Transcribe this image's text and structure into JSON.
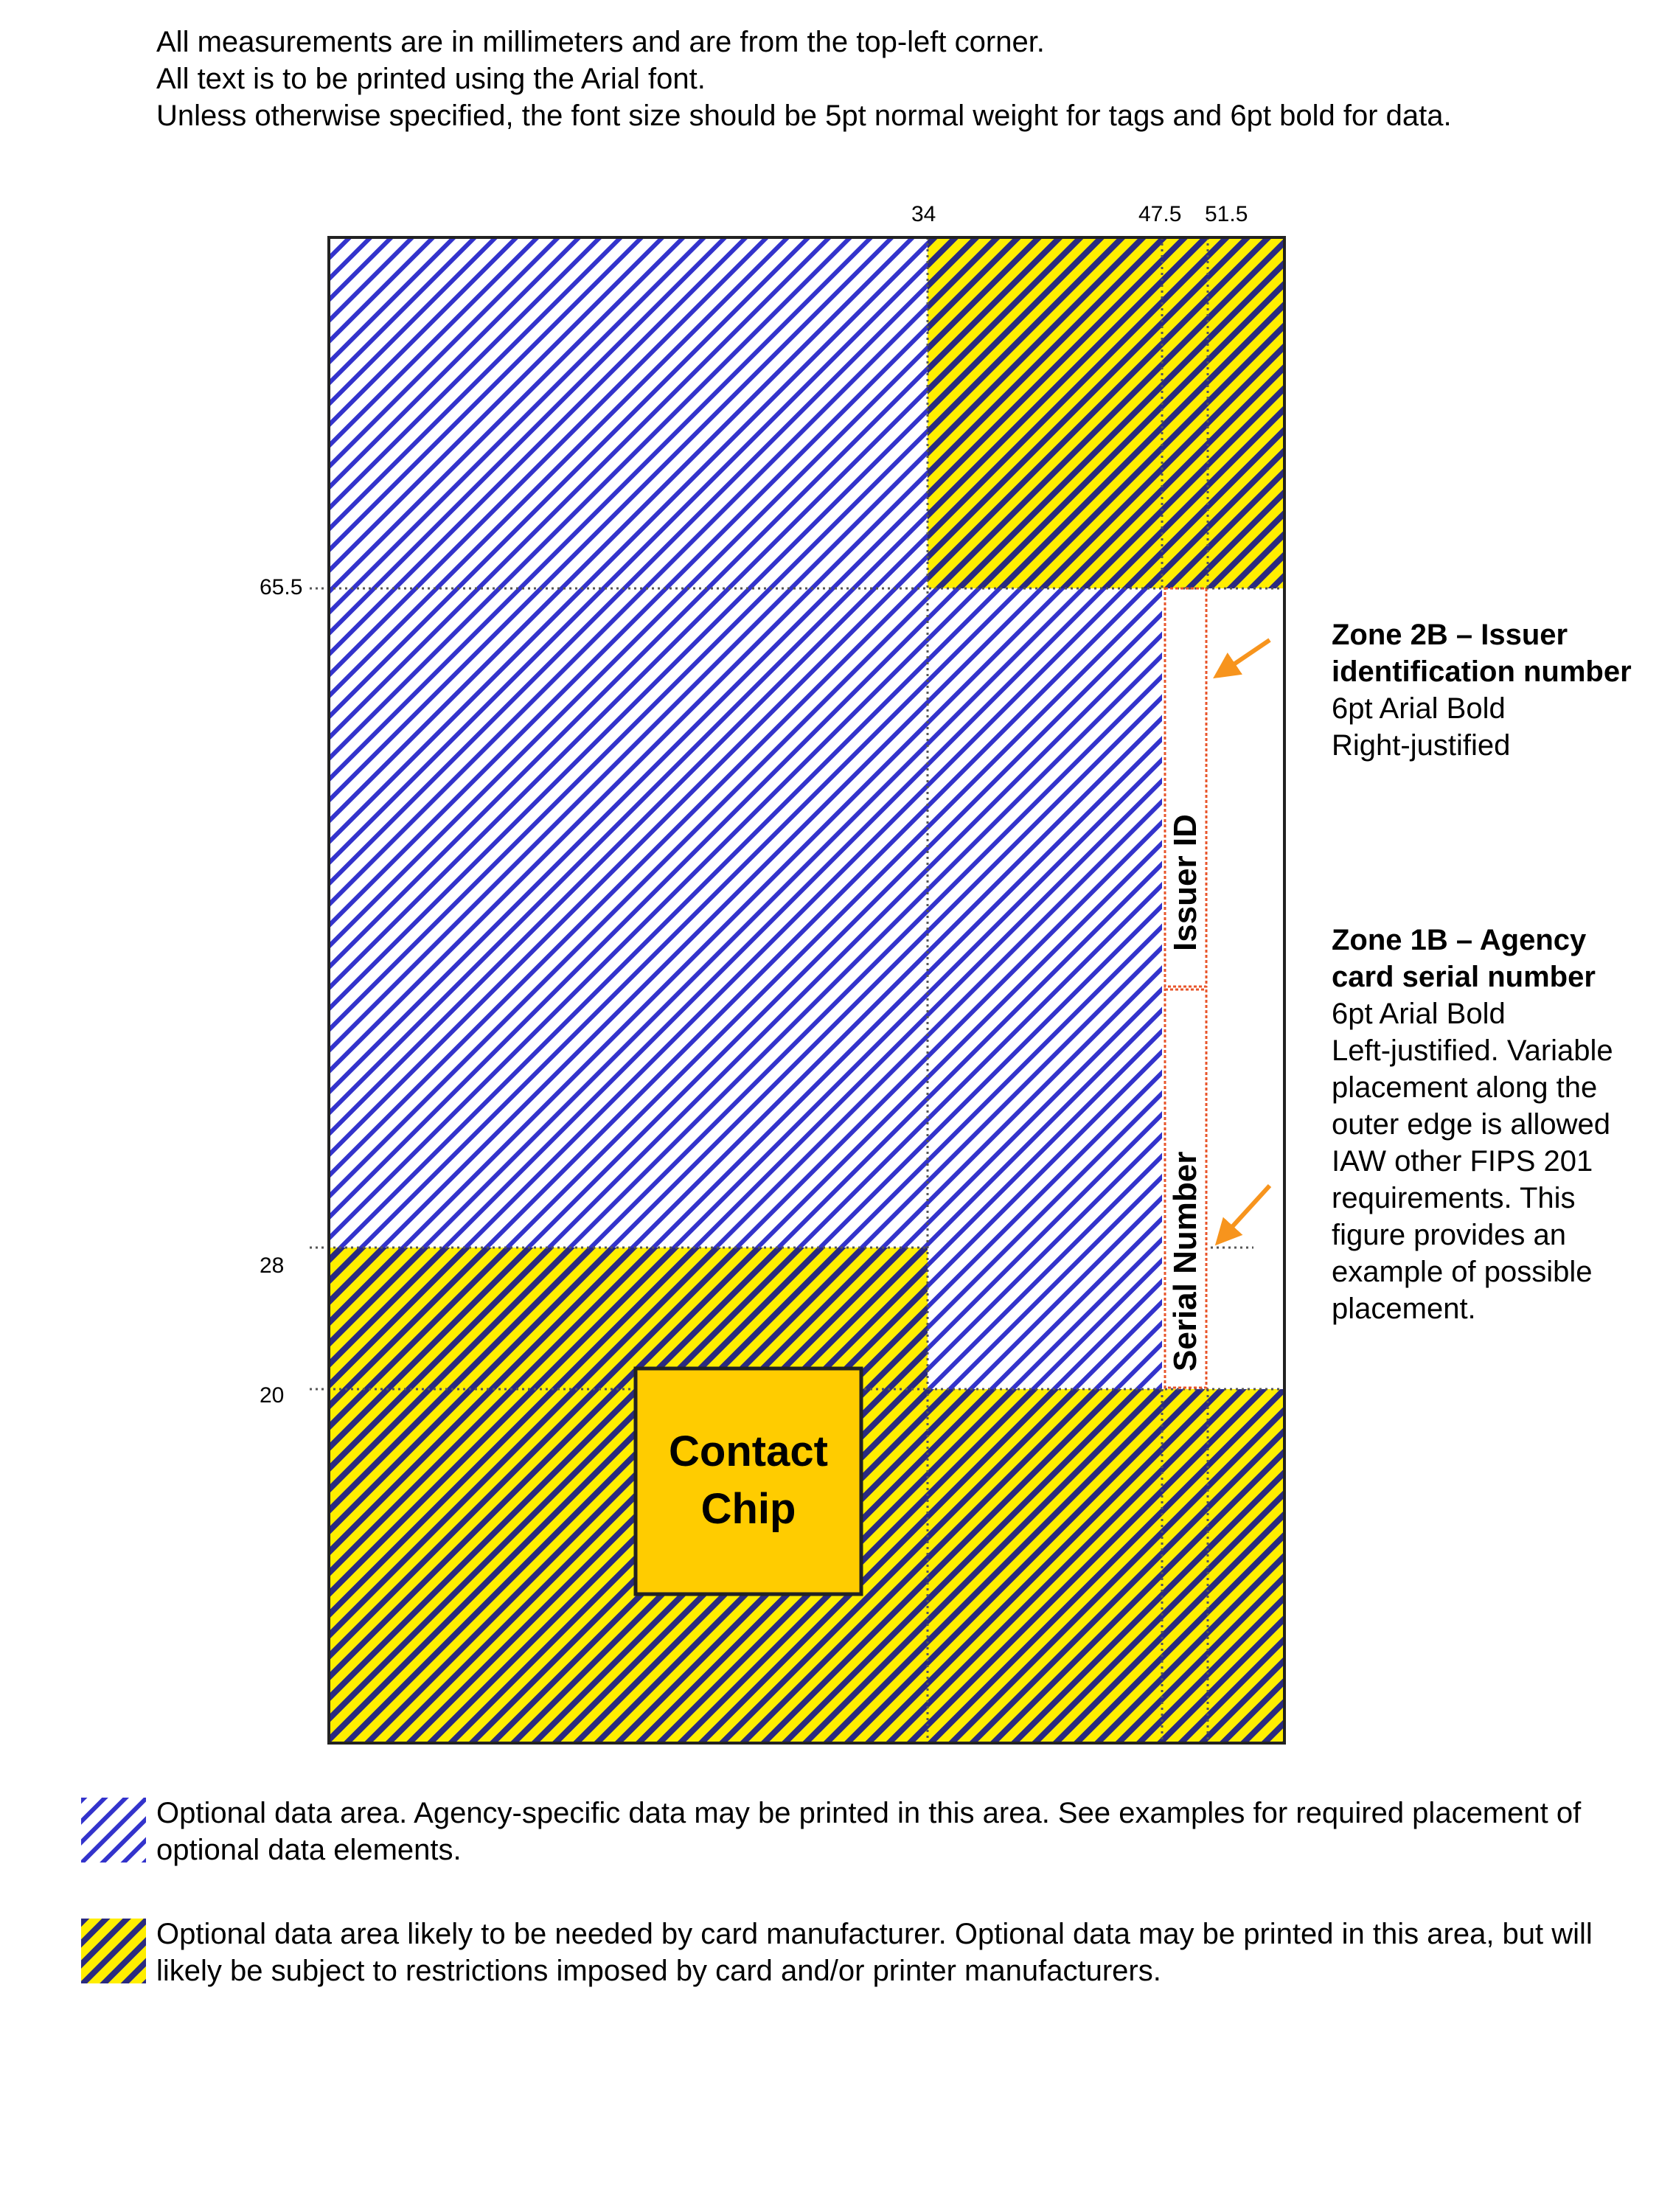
{
  "intro": {
    "line1": "All measurements are in millimeters and are from the top-left corner.",
    "line2": "All text is to be printed using the Arial font.",
    "line3": "Unless otherwise specified, the font size should be 5pt normal weight for tags and 6pt bold for data."
  },
  "dimensions": {
    "top": [
      "34",
      "47.5",
      "51.5"
    ],
    "left": [
      "65.5",
      "28",
      "20"
    ]
  },
  "card": {
    "chip_line1": "Contact",
    "chip_line2": "Chip",
    "issuer_id": "Issuer ID",
    "serial_number": "Serial Number"
  },
  "zone2b": {
    "title": "Zone 2B – Issuer identification number",
    "line1": "6pt Arial Bold",
    "line2": "Right-justified"
  },
  "zone1b": {
    "title": "Zone 1B – Agency card serial number",
    "line1": "6pt Arial Bold",
    "line2": "Left-justified. Variable placement along the outer edge is allowed IAW other FIPS 201 requirements.  This figure provides an example of possible placement."
  },
  "legend": {
    "blue": "Optional data area.  Agency-specific data may be printed in this area.  See examples for required placement of optional data elements.",
    "yellow": "Optional data area likely to be needed by card manufacturer.  Optional data may be printed in this area, but will likely be subject to restrictions imposed by card and/or printer manufacturers."
  },
  "colors": {
    "blue_stripe": "#3333cc",
    "yellow_stripe": "#ffee00",
    "dark_stripe": "#2a2a80",
    "chip_fill": "#ffcc00",
    "arrow": "#f7941d",
    "zone_border": "#e8542a"
  }
}
